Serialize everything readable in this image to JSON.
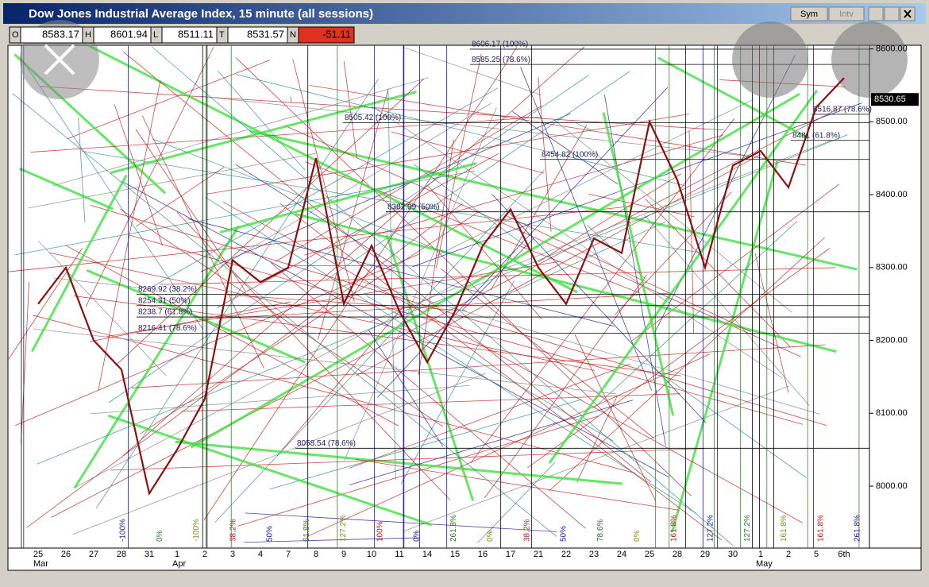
{
  "window": {
    "title": "Dow Jones Industrial Average Index, 15 minute (all sessions)",
    "buttons": [
      "Sym",
      "Intv"
    ]
  },
  "quote": {
    "labels": [
      "O",
      "H",
      "L",
      "T",
      "N"
    ],
    "values": [
      8583.17,
      8601.94,
      8511.11,
      8531.57,
      -51.11
    ]
  },
  "chart_data": {
    "type": "line",
    "x": [
      "25",
      "26",
      "27",
      "28",
      "31",
      "1",
      "2",
      "3",
      "4",
      "7",
      "8",
      "9",
      "10",
      "11",
      "14",
      "15",
      "16",
      "17",
      "21",
      "22",
      "23",
      "24",
      "25",
      "28",
      "29",
      "30",
      "1",
      "2",
      "5",
      "6th"
    ],
    "months": [
      "Mar",
      "Apr",
      "May"
    ],
    "values": [
      8250,
      8300,
      8200,
      8160,
      7990,
      8050,
      8120,
      8310,
      8280,
      8300,
      8450,
      8250,
      8330,
      8240,
      8170,
      8240,
      8330,
      8380,
      8300,
      8250,
      8340,
      8320,
      8500,
      8420,
      8300,
      8440,
      8460,
      8410,
      8520,
      8560
    ],
    "color": "#8b1010",
    "ylim": [
      7915,
      8605
    ],
    "yticks": [
      {
        "value": 8000,
        "label": "8000.00"
      },
      {
        "value": 8100,
        "label": "8100.00"
      },
      {
        "value": 8200,
        "label": "8200.00"
      },
      {
        "value": 8300,
        "label": "8300.00"
      },
      {
        "value": 8400,
        "label": "8400.00"
      },
      {
        "value": 8500,
        "label": "8500.00"
      },
      {
        "value": 8600,
        "label": "8600.00"
      }
    ],
    "last_price": 8530.65,
    "levels": [
      {
        "value": 8606.17,
        "label": "8606.17 (100%)"
      },
      {
        "value": 8585.25,
        "label": "8585.25 (78.6%)"
      },
      {
        "value": 8505.42,
        "label": "8505.42 (100%)"
      },
      {
        "value": 8454.82,
        "label": "8454.82 (100%)"
      },
      {
        "value": 8516.87,
        "label": "8516.87 (78.6%)"
      },
      {
        "value": 8481,
        "label": "8481 (61.8%)"
      },
      {
        "value": 8382.99,
        "label": "8382.99 (50%)"
      },
      {
        "value": 8269.92,
        "label": "8269.92 (38.2%)"
      },
      {
        "value": 8254.31,
        "label": "8254.31 (50%)"
      },
      {
        "value": 8238.7,
        "label": "8238.7 (61.8%)"
      },
      {
        "value": 8216.41,
        "label": "8216.41 (78.6%)"
      },
      {
        "value": 8058.54,
        "label": "8058.54 (78.6%)"
      }
    ],
    "fib_labels": [
      "-100%",
      "0%",
      "-100%",
      "38.2%",
      "50%",
      "61.8%",
      "127.2%",
      "100%",
      "0%",
      "261.8%",
      "0%",
      "38.2%",
      "50%",
      "78.6%",
      "0%",
      "161.8%",
      "127.2%",
      "127.2%",
      "161.8%",
      "161.8%",
      "261.8%"
    ]
  }
}
